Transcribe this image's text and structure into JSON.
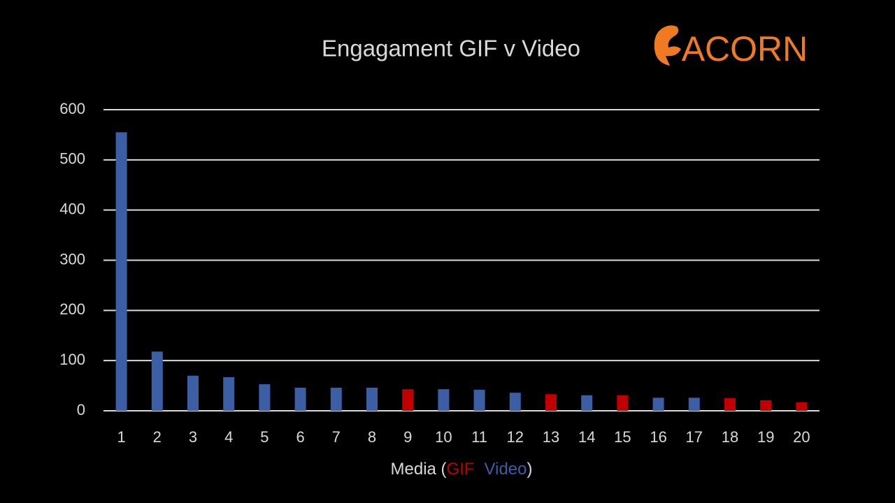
{
  "chart_data": {
    "type": "bar",
    "title": "Engagament GIF v Video",
    "logo": "ACORN",
    "x_label_prefix": "Media (",
    "x_label_suffix": ")",
    "legend": [
      {
        "name": "GIF",
        "color": "#c00000"
      },
      {
        "name": "Video",
        "color": "#3b5ea4"
      }
    ],
    "categories": [
      "1",
      "2",
      "3",
      "4",
      "5",
      "6",
      "7",
      "8",
      "9",
      "10",
      "11",
      "12",
      "13",
      "14",
      "15",
      "16",
      "17",
      "18",
      "19",
      "20"
    ],
    "values": [
      555,
      118,
      70,
      67,
      53,
      46,
      46,
      46,
      43,
      43,
      42,
      36,
      33,
      31,
      31,
      26,
      26,
      25,
      21,
      17
    ],
    "colors": [
      "#3b5ea4",
      "#3b5ea4",
      "#3b5ea4",
      "#3b5ea4",
      "#3b5ea4",
      "#3b5ea4",
      "#3b5ea4",
      "#3b5ea4",
      "#c00000",
      "#3b5ea4",
      "#3b5ea4",
      "#3b5ea4",
      "#c00000",
      "#3b5ea4",
      "#c00000",
      "#3b5ea4",
      "#3b5ea4",
      "#c00000",
      "#c00000",
      "#c00000"
    ],
    "ylim": [
      0,
      600
    ],
    "yticks": [
      0,
      100,
      200,
      300,
      400,
      500,
      600
    ],
    "grid": true
  }
}
